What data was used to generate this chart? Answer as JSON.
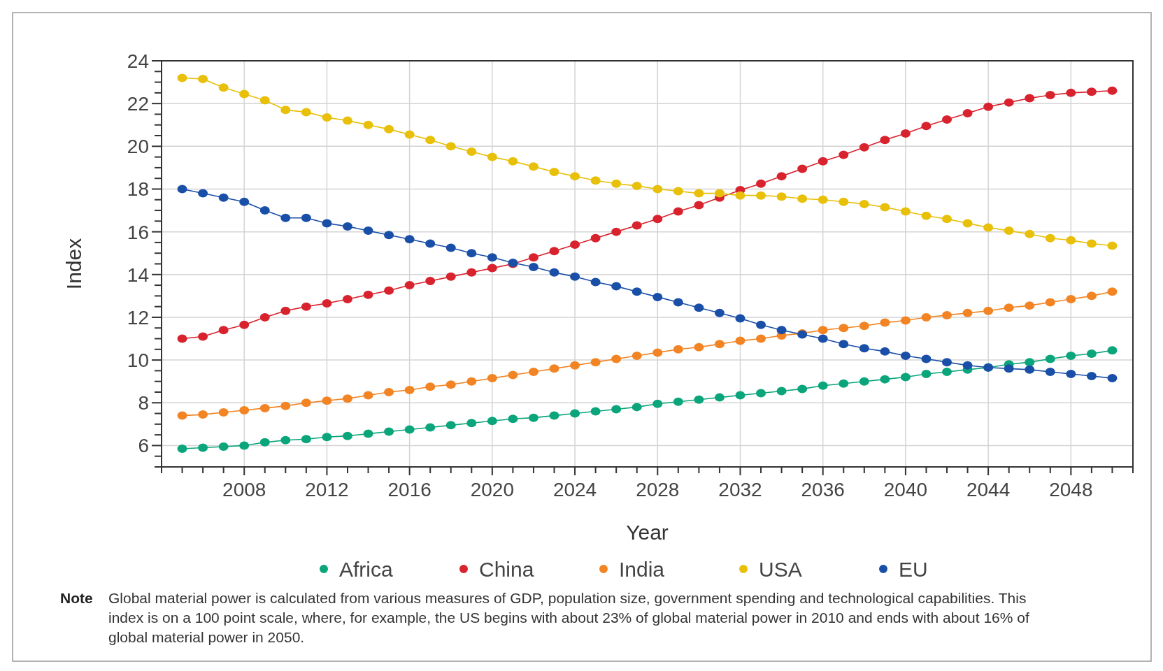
{
  "chart_data": {
    "type": "line",
    "xlabel": "Year",
    "ylabel": "Index",
    "xlim": [
      2004,
      2051
    ],
    "ylim": [
      5,
      24
    ],
    "xticks": [
      {
        "value": 2004,
        "label": null
      },
      {
        "value": 2005,
        "label": null
      },
      {
        "value": 2006,
        "label": null
      },
      {
        "value": 2007,
        "label": null
      },
      2008,
      {
        "value": 2009,
        "label": null
      },
      {
        "value": 2010,
        "label": null
      },
      {
        "value": 2011,
        "label": null
      },
      2012,
      {
        "value": 2013,
        "label": null
      },
      {
        "value": 2014,
        "label": null
      },
      {
        "value": 2015,
        "label": null
      },
      2016,
      {
        "value": 2017,
        "label": null
      },
      {
        "value": 2018,
        "label": null
      },
      {
        "value": 2019,
        "label": null
      },
      2020,
      {
        "value": 2021,
        "label": null
      },
      {
        "value": 2022,
        "label": null
      },
      {
        "value": 2023,
        "label": null
      },
      2024,
      {
        "value": 2025,
        "label": null
      },
      {
        "value": 2026,
        "label": null
      },
      {
        "value": 2027,
        "label": null
      },
      2028,
      {
        "value": 2029,
        "label": null
      },
      {
        "value": 2030,
        "label": null
      },
      {
        "value": 2031,
        "label": null
      },
      2032,
      {
        "value": 2033,
        "label": null
      },
      {
        "value": 2034,
        "label": null
      },
      {
        "value": 2035,
        "label": null
      },
      2036,
      {
        "value": 2037,
        "label": null
      },
      {
        "value": 2038,
        "label": null
      },
      {
        "value": 2039,
        "label": null
      },
      2040,
      {
        "value": 2041,
        "label": null
      },
      {
        "value": 2042,
        "label": null
      },
      {
        "value": 2043,
        "label": null
      },
      2044,
      {
        "value": 2045,
        "label": null
      },
      {
        "value": 2046,
        "label": null
      },
      {
        "value": 2047,
        "label": null
      },
      2048,
      {
        "value": 2049,
        "label": null
      },
      {
        "value": 2050,
        "label": null
      },
      {
        "value": 2051,
        "label": null
      }
    ],
    "yticks": [
      {
        "value": 5,
        "label": null
      },
      {
        "value": 5.5,
        "label": null
      },
      6,
      {
        "value": 6.5,
        "label": null
      },
      {
        "value": 7,
        "label": null
      },
      {
        "value": 7.5,
        "label": null
      },
      8,
      {
        "value": 8.5,
        "label": null
      },
      {
        "value": 9,
        "label": null
      },
      {
        "value": 9.5,
        "label": null
      },
      10,
      {
        "value": 10.5,
        "label": null
      },
      {
        "value": 11,
        "label": null
      },
      {
        "value": 11.5,
        "label": null
      },
      12,
      {
        "value": 12.5,
        "label": null
      },
      {
        "value": 13,
        "label": null
      },
      {
        "value": 13.5,
        "label": null
      },
      14,
      {
        "value": 14.5,
        "label": null
      },
      {
        "value": 15,
        "label": null
      },
      {
        "value": 15.5,
        "label": null
      },
      16,
      {
        "value": 16.5,
        "label": null
      },
      {
        "value": 17,
        "label": null
      },
      {
        "value": 17.5,
        "label": null
      },
      18,
      {
        "value": 18.5,
        "label": null
      },
      {
        "value": 19,
        "label": null
      },
      {
        "value": 19.5,
        "label": null
      },
      20,
      {
        "value": 20.5,
        "label": null
      },
      {
        "value": 21,
        "label": null
      },
      {
        "value": 21.5,
        "label": null
      },
      22,
      {
        "value": 22.5,
        "label": null
      },
      {
        "value": 23,
        "label": null
      },
      {
        "value": 23.5,
        "label": null
      },
      24
    ],
    "grid": true,
    "legend": "bottom",
    "marker": "circle",
    "line_style": "solid",
    "x": [
      2005,
      2006,
      2007,
      2008,
      2009,
      2010,
      2011,
      2012,
      2013,
      2014,
      2015,
      2016,
      2017,
      2018,
      2019,
      2020,
      2021,
      2022,
      2023,
      2024,
      2025,
      2026,
      2027,
      2028,
      2029,
      2030,
      2031,
      2032,
      2033,
      2034,
      2035,
      2036,
      2037,
      2038,
      2039,
      2040,
      2041,
      2042,
      2043,
      2044,
      2045,
      2046,
      2047,
      2048,
      2049,
      2050
    ],
    "series": [
      {
        "name": "Africa",
        "color": "#0aa57a",
        "values": [
          5.85,
          5.9,
          5.95,
          6.0,
          6.15,
          6.25,
          6.3,
          6.4,
          6.45,
          6.55,
          6.65,
          6.75,
          6.85,
          6.95,
          7.05,
          7.15,
          7.25,
          7.3,
          7.4,
          7.5,
          7.6,
          7.7,
          7.8,
          7.95,
          8.05,
          8.15,
          8.25,
          8.35,
          8.45,
          8.55,
          8.65,
          8.8,
          8.9,
          9.0,
          9.1,
          9.2,
          9.35,
          9.45,
          9.55,
          9.65,
          9.8,
          9.9,
          10.05,
          10.2,
          10.3,
          10.45
        ]
      },
      {
        "name": "China",
        "color": "#d8232e",
        "values": [
          11.0,
          11.1,
          11.4,
          11.65,
          12.0,
          12.3,
          12.5,
          12.65,
          12.85,
          13.05,
          13.25,
          13.5,
          13.7,
          13.9,
          14.1,
          14.3,
          14.5,
          14.8,
          15.1,
          15.4,
          15.7,
          16.0,
          16.3,
          16.6,
          16.95,
          17.25,
          17.6,
          17.95,
          18.25,
          18.6,
          18.95,
          19.3,
          19.6,
          19.95,
          20.3,
          20.6,
          20.95,
          21.25,
          21.55,
          21.85,
          22.05,
          22.25,
          22.4,
          22.5,
          22.55,
          22.6
        ]
      },
      {
        "name": "India",
        "color": "#f28424",
        "values": [
          7.4,
          7.45,
          7.55,
          7.65,
          7.75,
          7.85,
          8.0,
          8.1,
          8.2,
          8.35,
          8.5,
          8.6,
          8.75,
          8.85,
          9.0,
          9.15,
          9.3,
          9.45,
          9.6,
          9.75,
          9.9,
          10.05,
          10.2,
          10.35,
          10.5,
          10.6,
          10.75,
          10.9,
          11.0,
          11.15,
          11.25,
          11.4,
          11.5,
          11.6,
          11.75,
          11.85,
          12.0,
          12.1,
          12.2,
          12.3,
          12.45,
          12.55,
          12.7,
          12.85,
          13.0,
          13.2
        ]
      },
      {
        "name": "USA",
        "color": "#e8c00a",
        "values": [
          23.2,
          23.15,
          22.75,
          22.45,
          22.15,
          21.7,
          21.6,
          21.35,
          21.2,
          21.0,
          20.8,
          20.55,
          20.3,
          20.0,
          19.75,
          19.5,
          19.3,
          19.05,
          18.8,
          18.6,
          18.4,
          18.25,
          18.15,
          18.0,
          17.9,
          17.8,
          17.8,
          17.7,
          17.7,
          17.65,
          17.55,
          17.5,
          17.4,
          17.3,
          17.15,
          16.95,
          16.75,
          16.6,
          16.4,
          16.2,
          16.05,
          15.9,
          15.7,
          15.6,
          15.45,
          15.35
        ]
      },
      {
        "name": "EU",
        "color": "#1a4fa8",
        "values": [
          18.0,
          17.8,
          17.6,
          17.4,
          17.0,
          16.65,
          16.65,
          16.4,
          16.25,
          16.05,
          15.85,
          15.65,
          15.45,
          15.25,
          15.0,
          14.8,
          14.55,
          14.35,
          14.1,
          13.9,
          13.65,
          13.45,
          13.2,
          12.95,
          12.7,
          12.45,
          12.2,
          11.95,
          11.65,
          11.4,
          11.2,
          11.0,
          10.75,
          10.55,
          10.4,
          10.2,
          10.05,
          9.9,
          9.75,
          9.65,
          9.6,
          9.55,
          9.45,
          9.35,
          9.25,
          9.15
        ]
      }
    ],
    "annotations": [
      "Note Global material power is calculated from various measures of GDP, population size, government spending and technological capabilities. This index is on a 100 point scale, where, for example, the US begins with about 23% of global material power in 2010 and ends with about 16% of global material power in 2050."
    ]
  }
}
